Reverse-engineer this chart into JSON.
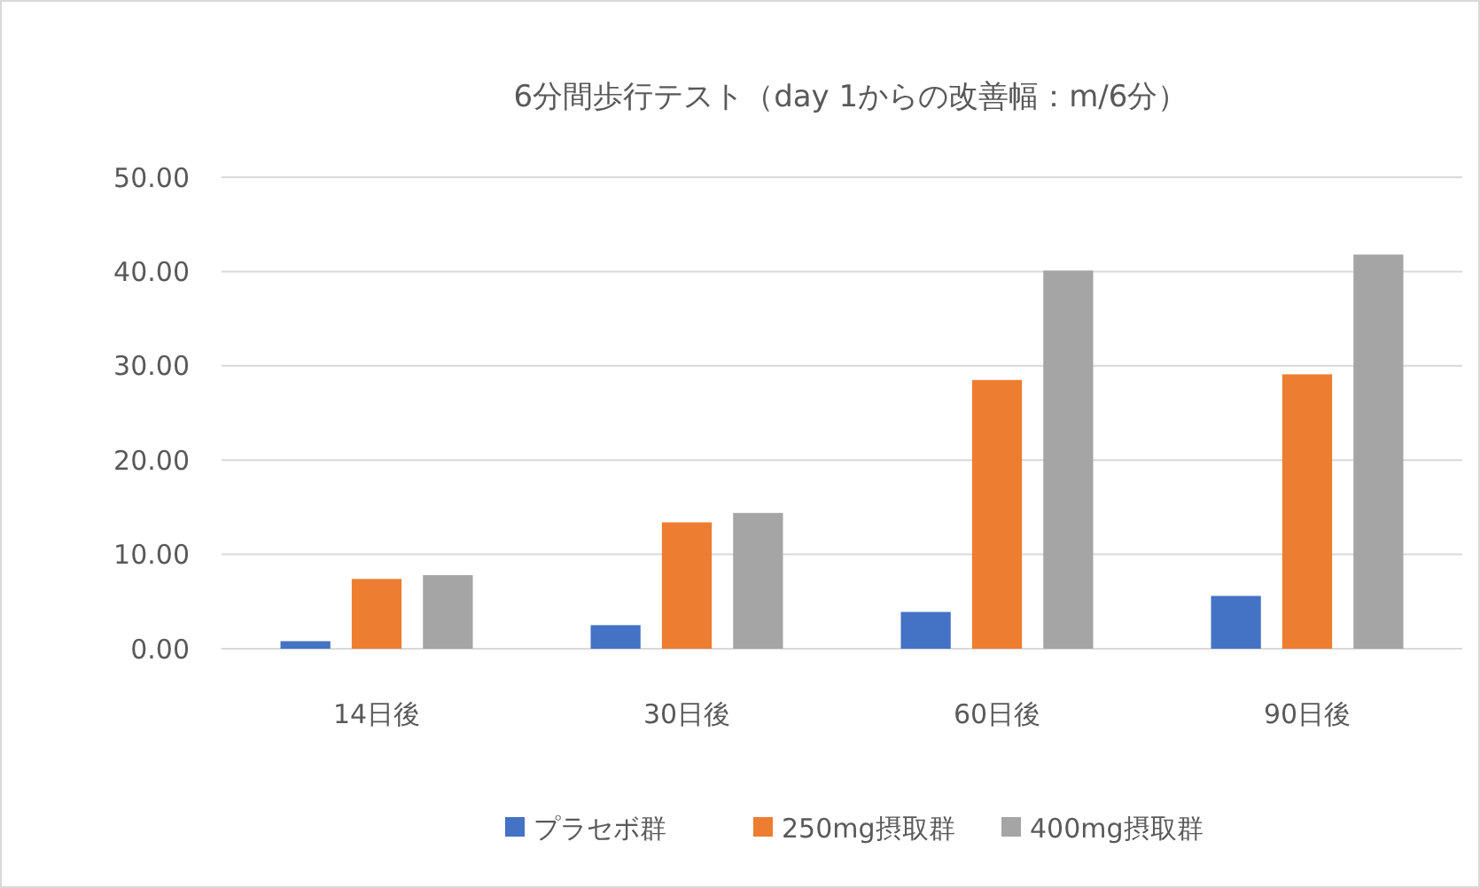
{
  "chart_data": {
    "type": "bar",
    "title": "6分間歩行テスト（day 1からの改善幅：m/6分）",
    "categories": [
      "14日後",
      "30日後",
      "60日後",
      "90日後"
    ],
    "series": [
      {
        "name": "プラセボ群",
        "color": "#4472c4",
        "values": [
          0.8,
          2.5,
          3.9,
          5.6
        ]
      },
      {
        "name": "250mg摂取群",
        "color": "#ed7d31",
        "values": [
          7.4,
          13.4,
          28.5,
          29.1
        ]
      },
      {
        "name": "400mg摂取群",
        "color": "#a5a5a5",
        "values": [
          7.8,
          14.4,
          40.1,
          41.8
        ]
      }
    ],
    "ylim": [
      0,
      50
    ],
    "yticks": [
      {
        "value": 0,
        "label": "0.00"
      },
      {
        "value": 10,
        "label": "10.00"
      },
      {
        "value": 20,
        "label": "20.00"
      },
      {
        "value": 30,
        "label": "30.00"
      },
      {
        "value": 40,
        "label": "40.00"
      },
      {
        "value": 50,
        "label": "50.00"
      }
    ],
    "grid": "y",
    "legend": "bottom"
  }
}
